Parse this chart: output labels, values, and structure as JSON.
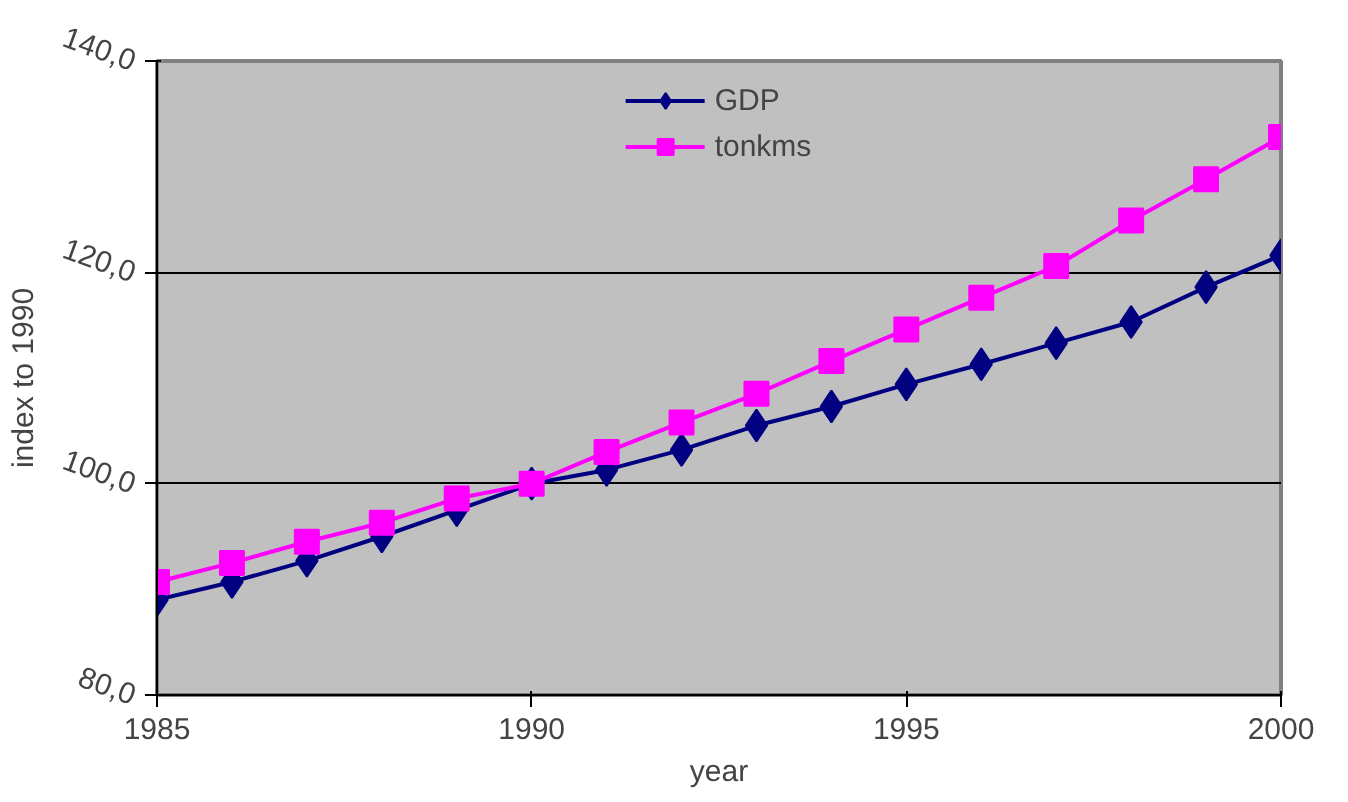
{
  "chart_data": {
    "type": "line",
    "xlabel": "year",
    "ylabel": "index to 1990",
    "x": [
      1985,
      1986,
      1987,
      1988,
      1989,
      1990,
      1991,
      1992,
      1993,
      1994,
      1995,
      1996,
      1997,
      1998,
      1999,
      2000
    ],
    "series": [
      {
        "name": "GDP",
        "color": "#000080",
        "marker": "diamond",
        "values": [
          89.0,
          90.7,
          92.7,
          95.0,
          97.5,
          100.0,
          101.3,
          103.2,
          105.5,
          107.3,
          109.4,
          111.3,
          113.3,
          115.3,
          118.6,
          121.6
        ]
      },
      {
        "name": "tonkms",
        "color": "#ff00ff",
        "marker": "square",
        "values": [
          90.7,
          92.5,
          94.5,
          96.3,
          98.6,
          100.0,
          103.0,
          105.8,
          108.5,
          111.6,
          114.6,
          117.6,
          120.6,
          124.9,
          128.8,
          132.8
        ]
      }
    ],
    "xlim": [
      1985,
      2000
    ],
    "xticks": [
      1985,
      1990,
      1995,
      2000
    ],
    "ylim": [
      80,
      140
    ],
    "yticks": [
      {
        "value": 80,
        "label": "80,0"
      },
      {
        "value": 100,
        "label": "100,0"
      },
      {
        "value": 120,
        "label": "120,0"
      },
      {
        "value": 140,
        "label": "140,0"
      }
    ],
    "grid": "y",
    "legend": "top",
    "line_style": "solid"
  }
}
